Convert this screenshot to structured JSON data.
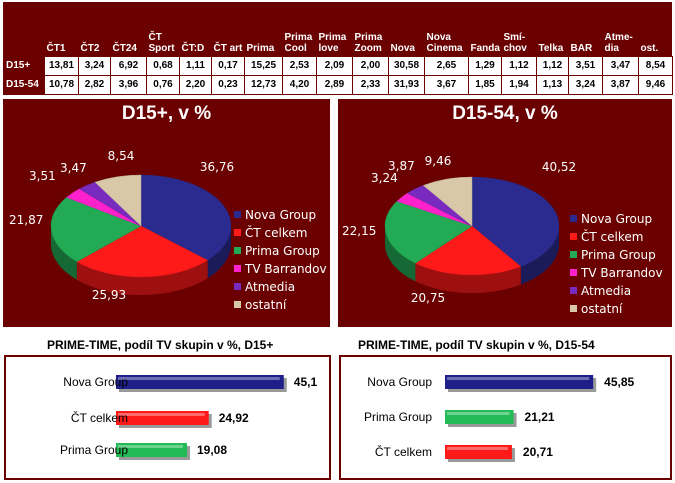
{
  "share_table": {
    "columns": [
      "ČT1",
      "ČT2",
      "ČT24",
      "ČT Sport",
      "ČT:D",
      "ČT art",
      "Prima",
      "Prima Cool",
      "Prima love",
      "Prima Zoom",
      "Nova",
      "Nova Cinema",
      "Fanda",
      "Smí-chov",
      "Telka",
      "BAR",
      "Atme-dia",
      "ost."
    ],
    "rows": [
      {
        "label": "D15+",
        "values": [
          "13,81",
          "3,24",
          "6,92",
          "0,68",
          "1,11",
          "0,17",
          "15,25",
          "2,53",
          "2,09",
          "2,00",
          "30,58",
          "2,65",
          "1,29",
          "1,12",
          "1,12",
          "3,51",
          "3,47",
          "8,54"
        ]
      },
      {
        "label": "D15-54",
        "values": [
          "10,78",
          "2,82",
          "3,96",
          "0,76",
          "2,20",
          "0,23",
          "12,73",
          "4,20",
          "2,89",
          "2,33",
          "31,93",
          "3,67",
          "1,85",
          "1,94",
          "1,13",
          "3,24",
          "3,87",
          "9,46"
        ]
      }
    ]
  },
  "chart_data": [
    {
      "type": "pie",
      "title": "D15+, v %",
      "categories": [
        "Nova Group",
        "ČT celkem",
        "Prima Group",
        "TV Barrandov",
        "Atmedia",
        "ostatní"
      ],
      "values": [
        36.76,
        25.93,
        21.87,
        3.51,
        3.47,
        8.54
      ],
      "labels": [
        "36,76",
        "25,93",
        "21,87",
        "3,51",
        "3,47",
        "8,54"
      ],
      "colors": [
        "#2b2b8f",
        "#ff1a1a",
        "#22aa55",
        "#ff22cc",
        "#7a2bbf",
        "#d8c8a8"
      ],
      "legend": "right"
    },
    {
      "type": "pie",
      "title": "D15-54, v %",
      "categories": [
        "Nova Group",
        "ČT celkem",
        "Prima Group",
        "TV Barrandov",
        "Atmedia",
        "ostatní"
      ],
      "values": [
        40.52,
        20.75,
        22.15,
        3.24,
        3.87,
        9.46
      ],
      "labels": [
        "40,52",
        "20,75",
        "22,15",
        "3,24",
        "3,87",
        "9,46"
      ],
      "colors": [
        "#2b2b8f",
        "#ff1a1a",
        "#22aa55",
        "#ff22cc",
        "#7a2bbf",
        "#d8c8a8"
      ],
      "legend": "right"
    },
    {
      "type": "bar",
      "orientation": "horizontal",
      "title": "PRIME-TIME, podíl TV skupin v %, D15+",
      "categories": [
        "Nova Group",
        "ČT celkem",
        "Prima Group"
      ],
      "values": [
        45.1,
        24.92,
        19.08
      ],
      "labels": [
        "45,1",
        "24,92",
        "19,08"
      ],
      "colors": [
        "#1f1f8a",
        "#ff1a1a",
        "#22bb55"
      ],
      "xlim": [
        0,
        50
      ]
    },
    {
      "type": "bar",
      "orientation": "horizontal",
      "title": "PRIME-TIME, podíl TV skupin v %, D15-54",
      "categories": [
        "Nova Group",
        "Prima Group",
        "ČT celkem"
      ],
      "values": [
        45.85,
        21.21,
        20.71
      ],
      "labels": [
        "45,85",
        "21,21",
        "20,71"
      ],
      "colors": [
        "#1f1f8a",
        "#22bb55",
        "#ff1a1a"
      ],
      "xlim": [
        0,
        50
      ]
    }
  ]
}
